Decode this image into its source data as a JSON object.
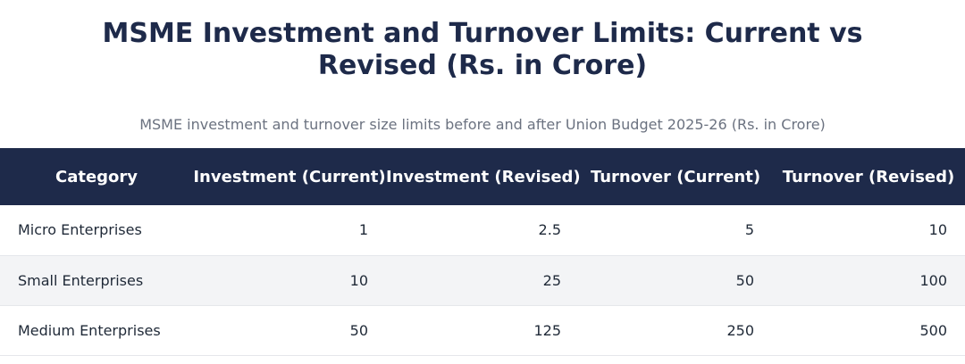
{
  "title": "MSME Investment and Turnover Limits: Current vs Revised (Rs. in Crore)",
  "subtitle": "MSME investment and turnover size limits before and after Union Budget 2025-26 (Rs. in Crore)",
  "table": {
    "headers": [
      "Category",
      "Investment (Current)",
      "Investment (Revised)",
      "Turnover (Current)",
      "Turnover (Revised)"
    ],
    "rows": [
      [
        "Micro Enterprises",
        "1",
        "2.5",
        "5",
        "10"
      ],
      [
        "Small Enterprises",
        "10",
        "25",
        "50",
        "100"
      ],
      [
        "Medium Enterprises",
        "50",
        "125",
        "250",
        "500"
      ]
    ]
  },
  "colors": {
    "header_bg": "#1e2a4a",
    "title": "#1e2a4a",
    "subtitle": "#6b7280",
    "stripe": "#f3f4f6"
  }
}
